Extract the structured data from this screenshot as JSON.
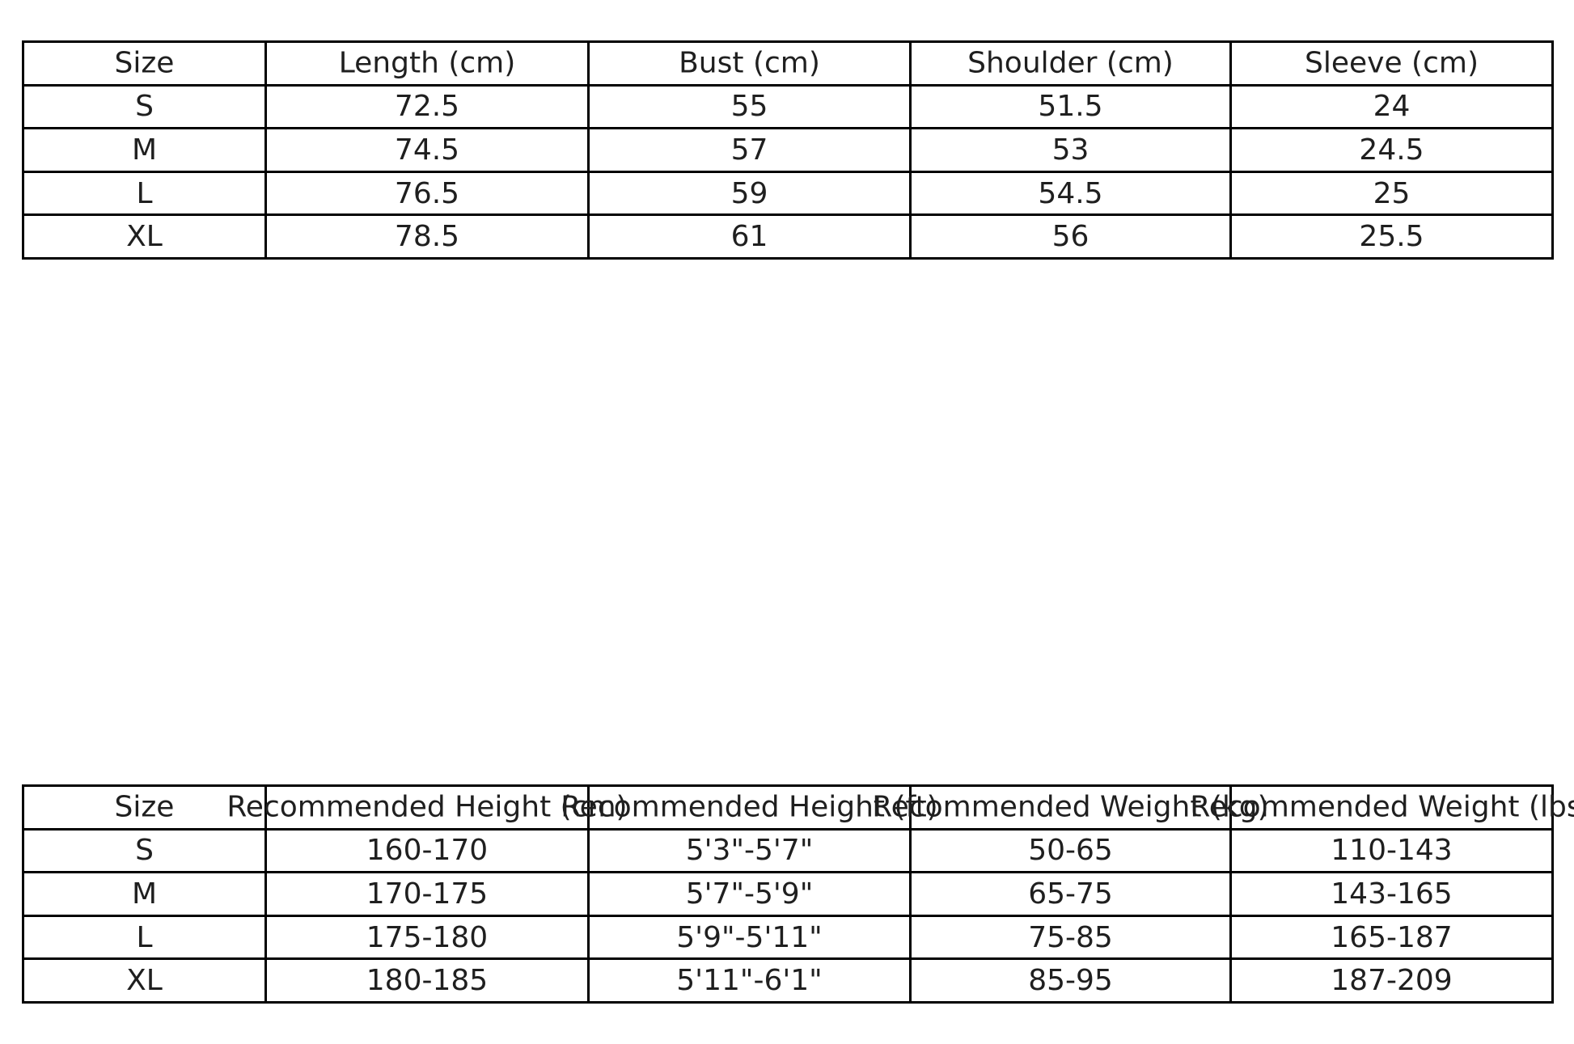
{
  "colors": {
    "background": "#ffffff",
    "border": "#000000",
    "text": "#1f1f1f"
  },
  "chart_data": [
    {
      "type": "table",
      "name": "garment-measurements",
      "columns": [
        "Size",
        "Length (cm)",
        "Bust (cm)",
        "Shoulder (cm)",
        "Sleeve (cm)"
      ],
      "rows": [
        [
          "S",
          "72.5",
          "55",
          "51.5",
          "24"
        ],
        [
          "M",
          "74.5",
          "57",
          "53",
          "24.5"
        ],
        [
          "L",
          "76.5",
          "59",
          "54.5",
          "25"
        ],
        [
          "XL",
          "78.5",
          "61",
          "56",
          "25.5"
        ]
      ]
    },
    {
      "type": "table",
      "name": "size-recommendations",
      "columns": [
        "Size",
        "Recommended Height (cm)",
        "Recommended Height (ft)",
        "Recommended Weight (kg)",
        "Recommended Weight (lbs)"
      ],
      "rows": [
        [
          "S",
          "160-170",
          "5'3\"-5'7\"",
          "50-65",
          "110-143"
        ],
        [
          "M",
          "170-175",
          "5'7\"-5'9\"",
          "65-75",
          "143-165"
        ],
        [
          "L",
          "175-180",
          "5'9\"-5'11\"",
          "75-85",
          "165-187"
        ],
        [
          "XL",
          "180-185",
          "5'11\"-6'1\"",
          "85-95",
          "187-209"
        ]
      ]
    }
  ]
}
